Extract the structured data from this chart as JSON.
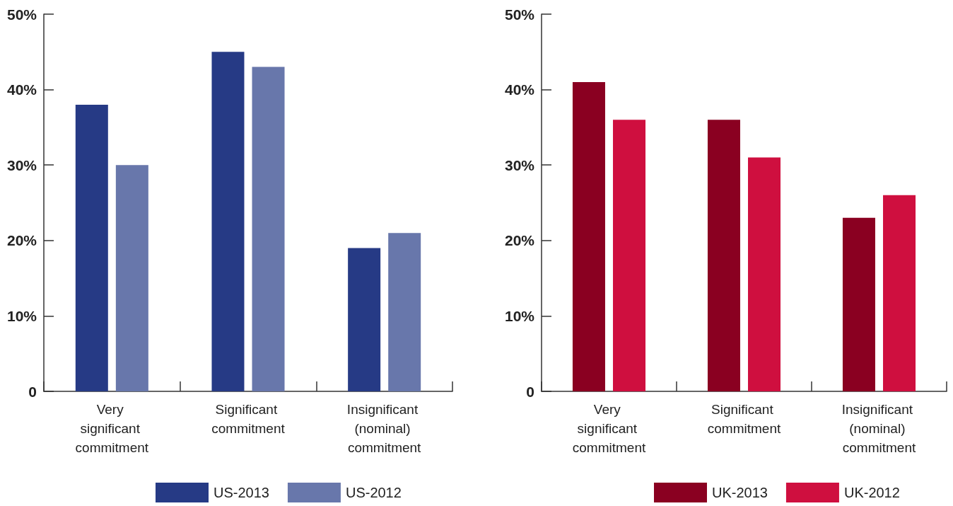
{
  "chart_data": [
    {
      "type": "bar",
      "categories": [
        "Very significant commitment",
        "Significant commitment",
        "Insignificant (nominal) commitment"
      ],
      "series": [
        {
          "name": "US-2013",
          "color": "#263a85",
          "values": [
            38,
            45,
            19
          ]
        },
        {
          "name": "US-2012",
          "color": "#6877ab",
          "values": [
            30,
            43,
            21
          ]
        }
      ],
      "ylim": [
        0,
        50
      ],
      "yticks": [
        0,
        {
          "value": 10,
          "label": "10%"
        },
        {
          "value": 20,
          "label": "20%"
        },
        {
          "value": 30,
          "label": "30%"
        },
        {
          "value": 40,
          "label": "40%"
        },
        {
          "value": 50,
          "label": "50%"
        }
      ],
      "grid": false,
      "legend": "bottom"
    },
    {
      "type": "bar",
      "categories": [
        "Very significant commitment",
        "Significant commitment",
        "Insignificant (nominal) commitment"
      ],
      "series": [
        {
          "name": "UK-2013",
          "color": "#8a0021",
          "values": [
            41,
            36,
            23
          ]
        },
        {
          "name": "UK-2012",
          "color": "#cf0f3f",
          "values": [
            36,
            31,
            26
          ]
        }
      ],
      "ylim": [
        0,
        50
      ],
      "yticks": [
        0,
        {
          "value": 10,
          "label": "10%"
        },
        {
          "value": 20,
          "label": "20%"
        },
        {
          "value": 30,
          "label": "30%"
        },
        {
          "value": 40,
          "label": "40%"
        },
        {
          "value": 50,
          "label": "50%"
        }
      ],
      "grid": false,
      "legend": "bottom"
    }
  ]
}
